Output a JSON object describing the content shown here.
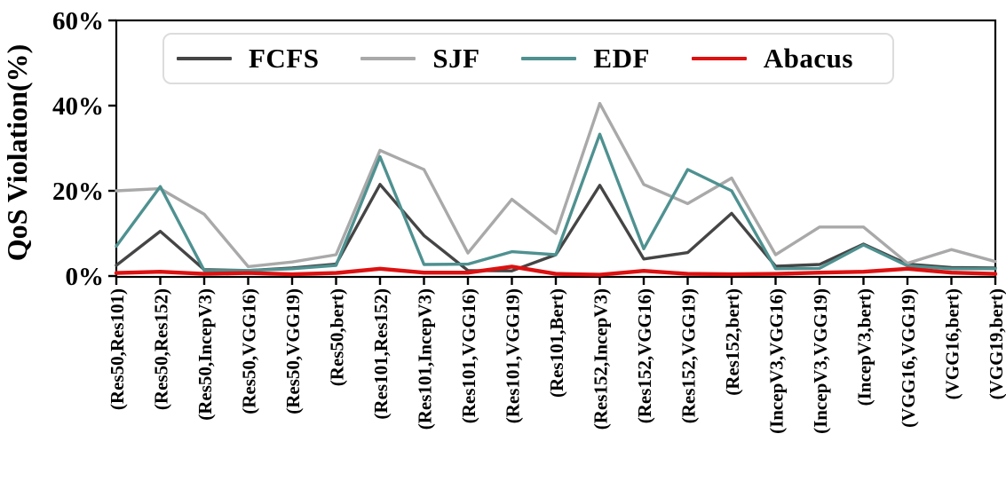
{
  "figure": {
    "background_color": "#ffffff",
    "axis_color": "#000000",
    "legend_border_color": "#dcdcdc"
  },
  "chart_data": {
    "type": "line",
    "title": "",
    "xlabel": "",
    "ylabel": "QoS Violation(%)",
    "ylim": [
      0,
      60
    ],
    "grid": false,
    "legend_position": "top-inside",
    "yticks": [
      {
        "value": 0,
        "label": "0%"
      },
      {
        "value": 20,
        "label": "20%"
      },
      {
        "value": 40,
        "label": "40%"
      },
      {
        "value": 60,
        "label": "60%"
      }
    ],
    "categories": [
      "(Res50,Res101)",
      "(Res50,Res152)",
      "(Res50,IncepV3)",
      "(Res50,VGG16)",
      "(Res50,VGG19)",
      "(Res50,bert)",
      "(Res101,Res152)",
      "(Res101,IncepV3)",
      "(Res101,VGG16)",
      "(Res101,VGG19)",
      "(Res101,Bert)",
      "(Res152,IncepV3)",
      "(Res152,VGG16)",
      "(Res152,VGG19)",
      "(Res152,bert)",
      "(IncepV3,VGG16)",
      "(IncepV3,VGG19)",
      "(IncepV3,bert)",
      "(VGG16,VGG19)",
      "(VGG16,bert)",
      "(VGG19,bert)"
    ],
    "series": [
      {
        "name": "FCFS",
        "color": "#454545",
        "values": [
          2.5,
          10.5,
          1.5,
          1.3,
          1.9,
          2.8,
          21.5,
          9.5,
          1.3,
          1.2,
          5.0,
          21.3,
          4.0,
          5.5,
          14.7,
          2.3,
          2.7,
          7.5,
          2.8,
          2.0,
          1.9
        ]
      },
      {
        "name": "SJF",
        "color": "#a9a9a9",
        "values": [
          20.0,
          20.5,
          14.5,
          2.2,
          3.3,
          5.0,
          29.5,
          25.0,
          5.4,
          18.0,
          10.0,
          40.5,
          21.5,
          17.0,
          23.0,
          5.0,
          11.5,
          11.5,
          3.0,
          6.2,
          3.4
        ]
      },
      {
        "name": "EDF",
        "color": "#4e9190",
        "values": [
          7.0,
          21.0,
          1.3,
          1.3,
          1.7,
          2.5,
          28.0,
          2.7,
          2.8,
          5.7,
          5.0,
          33.3,
          6.4,
          25.0,
          20.0,
          1.7,
          1.8,
          7.3,
          2.4,
          1.7,
          1.7
        ]
      },
      {
        "name": "Abacus",
        "color": "#dd1111",
        "values": [
          0.7,
          1.0,
          0.5,
          0.7,
          0.4,
          0.7,
          1.7,
          0.8,
          0.8,
          2.2,
          0.5,
          0.3,
          1.2,
          0.5,
          0.4,
          0.5,
          0.8,
          1.0,
          1.7,
          0.8,
          0.5
        ]
      }
    ]
  }
}
